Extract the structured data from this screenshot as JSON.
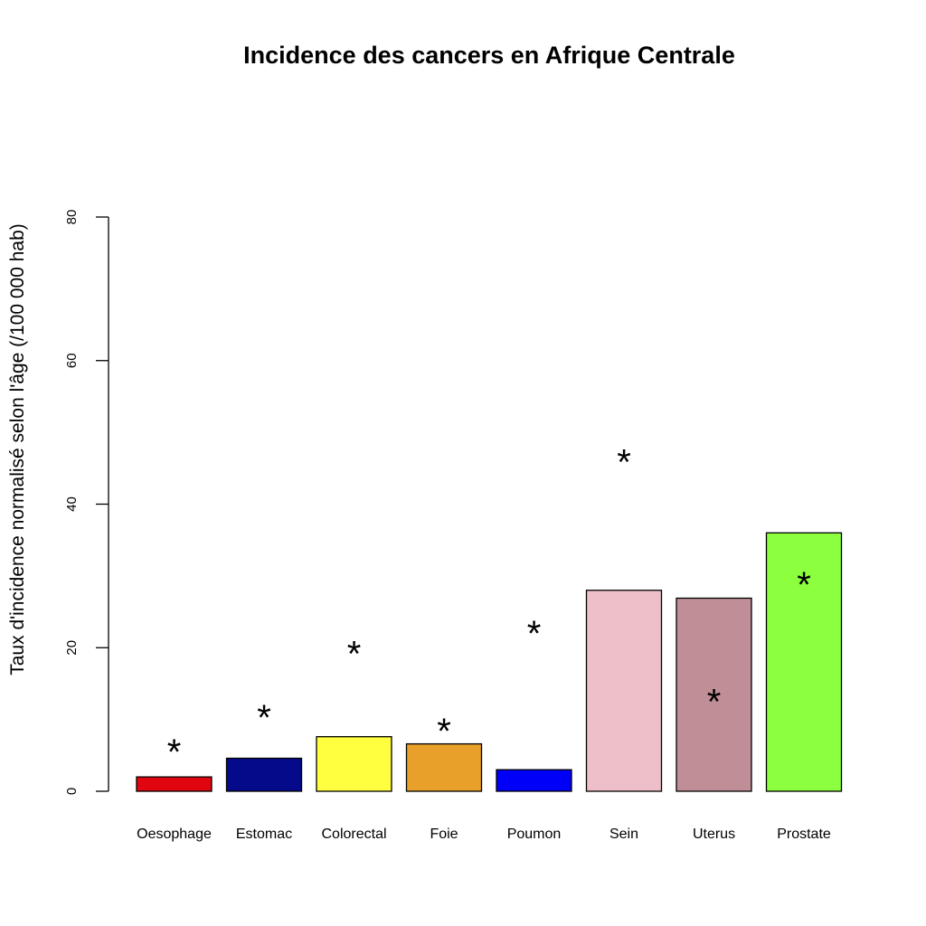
{
  "chart_data": {
    "type": "bar",
    "title": "Incidence des cancers en Afrique Centrale",
    "xlabel": "",
    "ylabel": "Taux d'incidence normalisé selon l'âge (/100 000 hab)",
    "ylim": [
      0,
      80
    ],
    "yticks": [
      "0",
      "20",
      "40",
      "60",
      "80"
    ],
    "grid": false,
    "categories": [
      "Oesophage",
      "Estomac",
      "Colorectal",
      "Foie",
      "Poumon",
      "Sein",
      "Uterus",
      "Prostate"
    ],
    "values": [
      2.0,
      4.6,
      7.6,
      6.6,
      3.0,
      28.0,
      26.9,
      36.0
    ],
    "colors": [
      "#e0050f",
      "#050a8a",
      "#ffff3f",
      "#e8a02a",
      "#0000f8",
      "#efbfc9",
      "#c08e97",
      "#8cff3f"
    ],
    "markers": {
      "symbol": "*",
      "values": [
        5.9,
        10.7,
        19.6,
        8.8,
        22.4,
        46.3,
        12.9,
        29.2
      ]
    }
  }
}
